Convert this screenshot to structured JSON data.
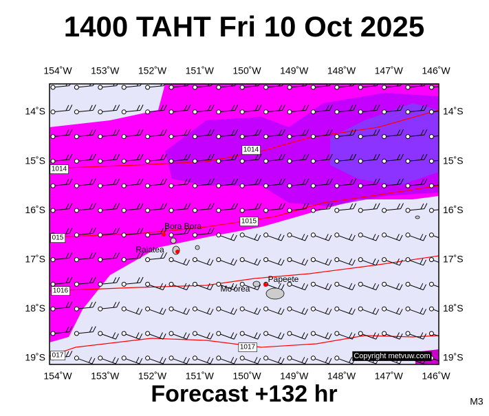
{
  "header": {
    "title": "1400 TAHT Fri 10 Oct 2025"
  },
  "footer": {
    "forecast": "Forecast +132 hr",
    "code": "M3"
  },
  "map": {
    "lon_labels": [
      "154˚W",
      "153˚W",
      "152˚W",
      "151˚W",
      "150˚W",
      "149˚W",
      "148˚W",
      "147˚W",
      "146˚W"
    ],
    "lat_labels": [
      "14˚S",
      "15˚S",
      "16˚S",
      "17˚S",
      "18˚S",
      "19˚S"
    ],
    "isobar_labels": [
      "1014",
      "1014",
      "1015",
      "015",
      "1016",
      "1017",
      "017"
    ],
    "places": [
      "Bora Bora",
      "Raiatea",
      "Mo'orea",
      "Papeete"
    ],
    "copyright": "Copyright metvuw.com"
  }
}
